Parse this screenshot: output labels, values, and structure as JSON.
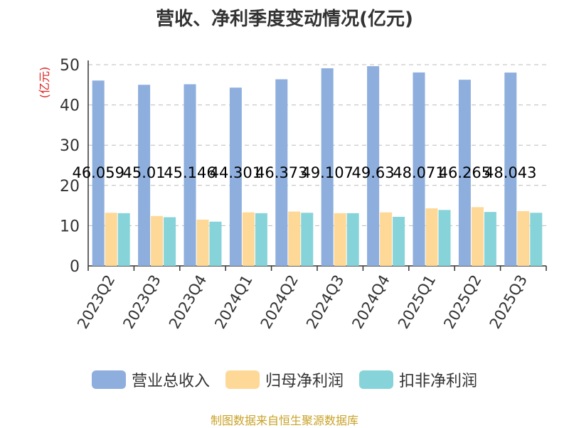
{
  "chart_data": {
    "type": "bar",
    "title": "营收、净利季度变动情况(亿元)",
    "ylabel": "(亿元)",
    "ylim": [
      0,
      50
    ],
    "yticks": [
      0,
      10,
      20,
      30,
      40,
      50
    ],
    "grid": true,
    "legend_position": "bottom",
    "categories": [
      "2023Q2",
      "2023Q3",
      "2023Q4",
      "2024Q1",
      "2024Q2",
      "2024Q3",
      "2024Q4",
      "2025Q1",
      "2025Q2",
      "2025Q3"
    ],
    "series": [
      {
        "name": "营业总收入",
        "color": "#8eaedd",
        "values": [
          46.059,
          45.01,
          45.146,
          44.301,
          46.373,
          49.107,
          49.63,
          48.071,
          46.265,
          48.043
        ],
        "labels": [
          "46.059",
          "45.01",
          "45.146",
          "44.301",
          "46.373",
          "49.107",
          "49.63",
          "48.071",
          "46.265",
          "48.043"
        ]
      },
      {
        "name": "归母净利润",
        "color": "#fed897",
        "values": [
          13.2,
          12.4,
          11.5,
          13.3,
          13.5,
          13.1,
          13.3,
          14.3,
          14.6,
          13.6
        ]
      },
      {
        "name": "扣非净利润",
        "color": "#86d4d9",
        "values": [
          13.1,
          12.1,
          11.0,
          13.1,
          13.2,
          13.1,
          12.2,
          13.9,
          13.4,
          13.2
        ]
      }
    ],
    "source": "制图数据来自恒生聚源数据库"
  }
}
